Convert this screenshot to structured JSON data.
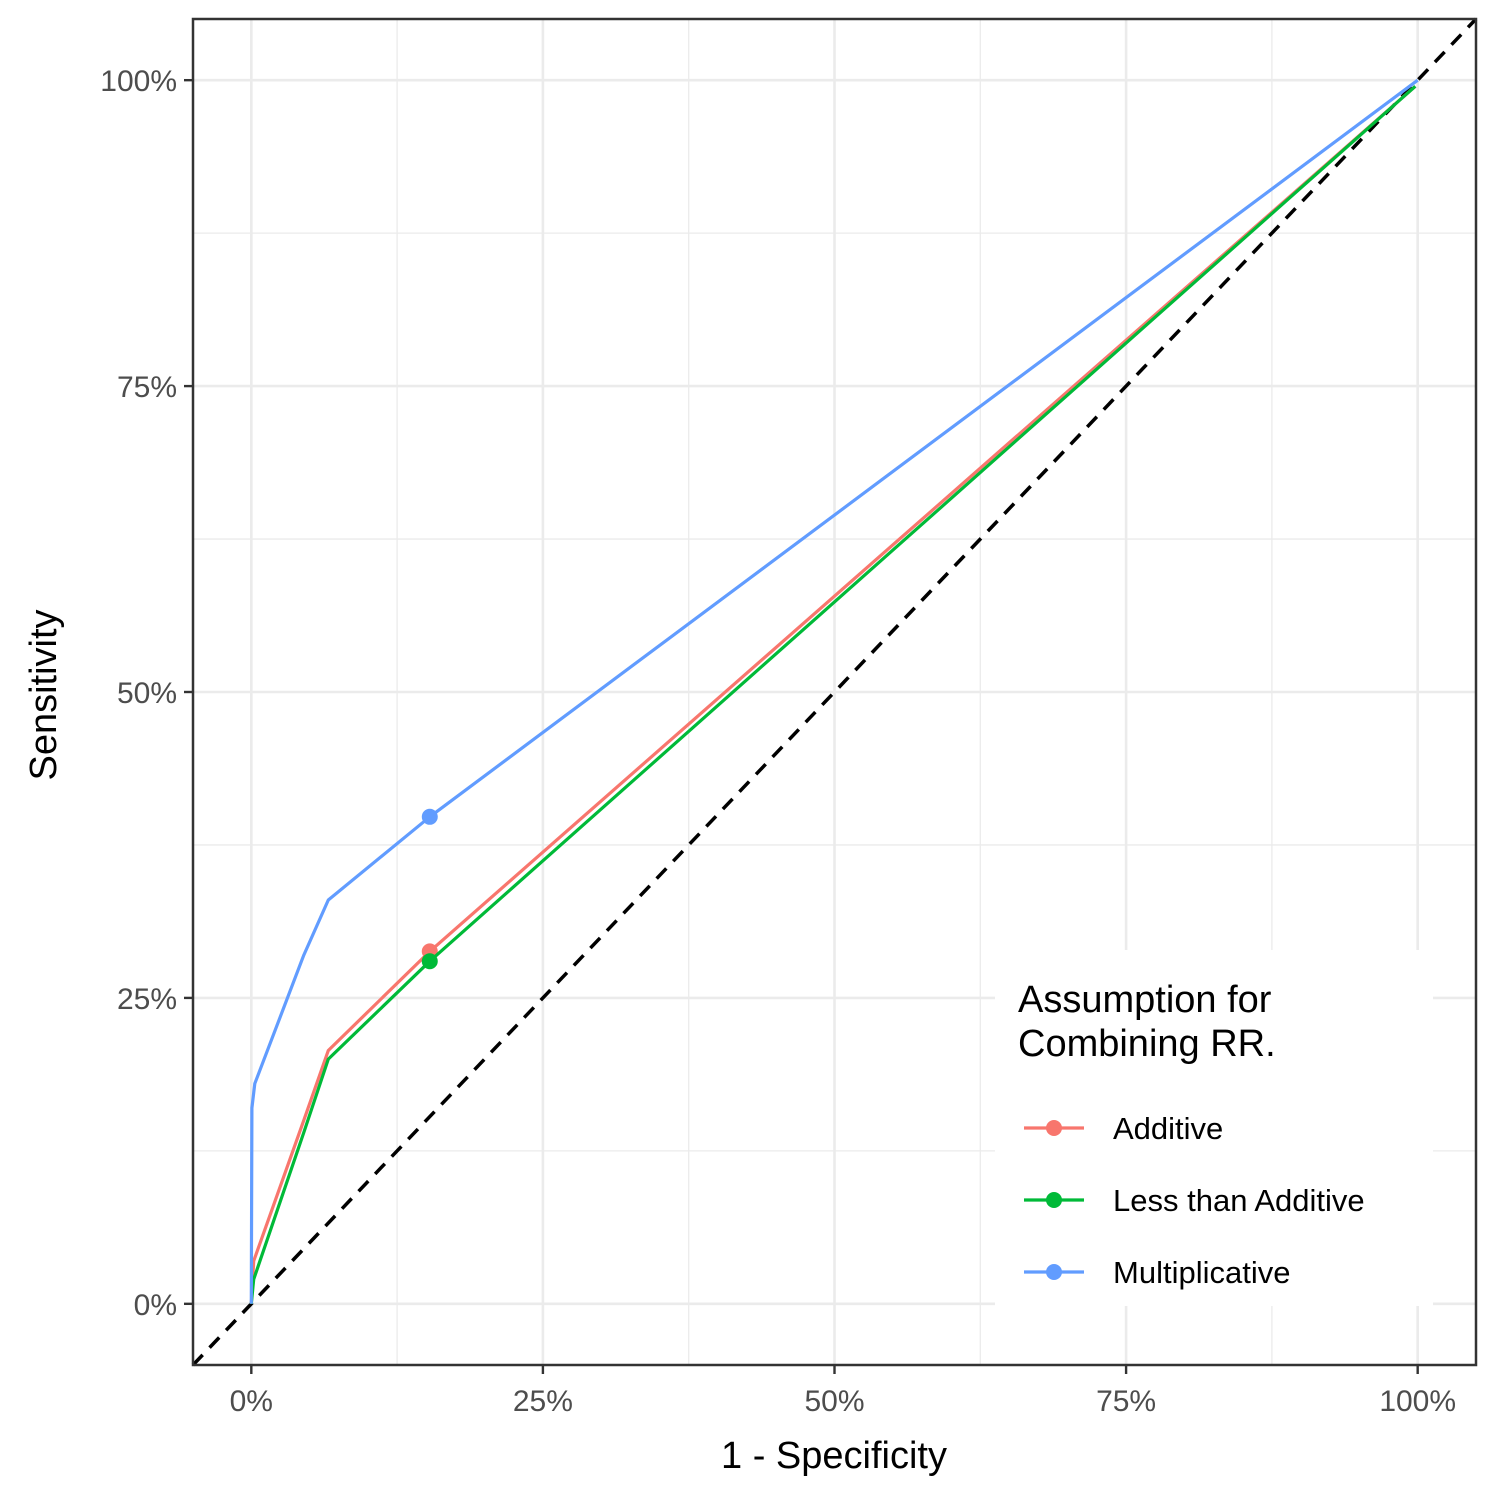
{
  "chart_data": {
    "type": "line",
    "title": "",
    "xlabel": "1 - Specificity",
    "ylabel": "Sensitivity",
    "xlim": [
      -0.05,
      1.05
    ],
    "ylim": [
      -0.05,
      1.05
    ],
    "x_ticks": [
      0,
      0.25,
      0.5,
      0.75,
      1.0
    ],
    "y_ticks": [
      0,
      0.25,
      0.5,
      0.75,
      1.0
    ],
    "x_tick_labels": [
      "0%",
      "25%",
      "50%",
      "75%",
      "100%"
    ],
    "y_tick_labels": [
      "0%",
      "25%",
      "50%",
      "75%",
      "100%"
    ],
    "grid": true,
    "reference_line": {
      "style": "dashed",
      "color": "#000000",
      "from": [
        -0.05,
        -0.05
      ],
      "to": [
        1.05,
        1.05
      ]
    },
    "legend": {
      "title": "Assumption for\nCombining RR.",
      "placement": "bottom-right"
    },
    "series": [
      {
        "name": "Additive",
        "color": "#F8766D",
        "x": [
          0,
          0.002,
          0.045,
          0.066,
          0.153,
          0.998
        ],
        "y": [
          0,
          0.035,
          0.15,
          0.207,
          0.288,
          0.995
        ],
        "marker": {
          "x": 0.153,
          "y": 0.288
        }
      },
      {
        "name": "Less than Additive",
        "color": "#00BA38",
        "x": [
          0,
          0.002,
          0.045,
          0.066,
          0.153,
          0.998
        ],
        "y": [
          0,
          0.02,
          0.14,
          0.2,
          0.28,
          0.995
        ],
        "marker": {
          "x": 0.153,
          "y": 0.28
        }
      },
      {
        "name": "Multiplicative",
        "color": "#619CFF",
        "x": [
          0,
          0.0005,
          0.003,
          0.045,
          0.066,
          0.153,
          1.0
        ],
        "y": [
          0,
          0.16,
          0.18,
          0.285,
          0.33,
          0.398,
          1.0
        ],
        "marker": {
          "x": 0.153,
          "y": 0.398
        }
      }
    ]
  }
}
